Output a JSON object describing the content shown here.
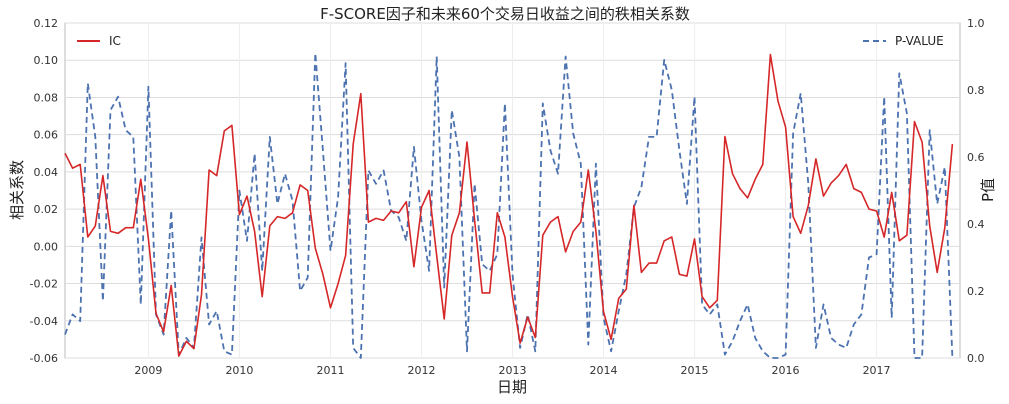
{
  "chart_data": {
    "type": "line",
    "title": "F-SCORE因子和未来60个交易日收益之间的秩相关系数",
    "xlabel": "日期",
    "ylabel": "相关系数",
    "y2label": "P值",
    "x_tick_labels": [
      "2009",
      "2010",
      "2011",
      "2012",
      "2013",
      "2014",
      "2015",
      "2016",
      "2017"
    ],
    "x_range": [
      "2008-02",
      "2017-12"
    ],
    "ylim": [
      -0.06,
      0.12
    ],
    "y_ticks": [
      -0.06,
      -0.04,
      -0.02,
      0.0,
      0.02,
      0.04,
      0.06,
      0.08,
      0.1,
      0.12
    ],
    "y2lim": [
      0.0,
      1.0
    ],
    "y2_ticks": [
      0.0,
      0.2,
      0.4,
      0.6,
      0.8,
      1.0
    ],
    "grid": true,
    "legend": [
      {
        "name": "IC",
        "placement": "top-left"
      },
      {
        "name": "P-VALUE",
        "placement": "top-right"
      }
    ],
    "series": [
      {
        "name": "IC",
        "axis": "left",
        "style": "solid",
        "color": "#d62728",
        "points": [
          [
            "2008-02",
            0.05
          ],
          [
            "2008-03",
            0.042
          ],
          [
            "2008-04",
            0.044
          ],
          [
            "2008-05",
            0.005
          ],
          [
            "2008-06",
            0.011
          ],
          [
            "2008-07",
            0.038
          ],
          [
            "2008-08",
            0.008
          ],
          [
            "2008-09",
            0.007
          ],
          [
            "2008-10",
            0.01
          ],
          [
            "2008-11",
            0.01
          ],
          [
            "2008-12",
            0.036
          ],
          [
            "2009-01",
            0.004
          ],
          [
            "2009-02",
            -0.036
          ],
          [
            "2009-03",
            -0.046
          ],
          [
            "2009-04",
            -0.021
          ],
          [
            "2009-05",
            -0.059
          ],
          [
            "2009-06",
            -0.051
          ],
          [
            "2009-07",
            -0.055
          ],
          [
            "2009-08",
            -0.026
          ],
          [
            "2009-09",
            0.041
          ],
          [
            "2009-10",
            0.038
          ],
          [
            "2009-11",
            0.062
          ],
          [
            "2009-12",
            0.065
          ],
          [
            "2010-01",
            0.017
          ],
          [
            "2010-02",
            0.027
          ],
          [
            "2010-03",
            0.008
          ],
          [
            "2010-04",
            -0.027
          ],
          [
            "2010-05",
            0.011
          ],
          [
            "2010-06",
            0.016
          ],
          [
            "2010-07",
            0.015
          ],
          [
            "2010-08",
            0.018
          ],
          [
            "2010-09",
            0.033
          ],
          [
            "2010-10",
            0.03
          ],
          [
            "2010-11",
            -0.001
          ],
          [
            "2010-12",
            -0.015
          ],
          [
            "2011-01",
            -0.033
          ],
          [
            "2011-02",
            -0.02
          ],
          [
            "2011-03",
            -0.005
          ],
          [
            "2011-04",
            0.055
          ],
          [
            "2011-05",
            0.082
          ],
          [
            "2011-06",
            0.013
          ],
          [
            "2011-07",
            0.015
          ],
          [
            "2011-08",
            0.014
          ],
          [
            "2011-09",
            0.019
          ],
          [
            "2011-10",
            0.018
          ],
          [
            "2011-11",
            0.024
          ],
          [
            "2011-12",
            -0.011
          ],
          [
            "2012-01",
            0.021
          ],
          [
            "2012-02",
            0.03
          ],
          [
            "2012-03",
            -0.005
          ],
          [
            "2012-04",
            -0.039
          ],
          [
            "2012-05",
            0.006
          ],
          [
            "2012-06",
            0.018
          ],
          [
            "2012-07",
            0.056
          ],
          [
            "2012-08",
            0.014
          ],
          [
            "2012-09",
            -0.025
          ],
          [
            "2012-10",
            -0.025
          ],
          [
            "2012-11",
            0.018
          ],
          [
            "2012-12",
            0.005
          ],
          [
            "2013-01",
            -0.027
          ],
          [
            "2013-02",
            -0.052
          ],
          [
            "2013-03",
            -0.038
          ],
          [
            "2013-04",
            -0.049
          ],
          [
            "2013-05",
            0.006
          ],
          [
            "2013-06",
            0.013
          ],
          [
            "2013-07",
            0.016
          ],
          [
            "2013-08",
            -0.003
          ],
          [
            "2013-09",
            0.008
          ],
          [
            "2013-10",
            0.013
          ],
          [
            "2013-11",
            0.041
          ],
          [
            "2013-12",
            0.008
          ],
          [
            "2014-01",
            -0.035
          ],
          [
            "2014-02",
            -0.05
          ],
          [
            "2014-03",
            -0.028
          ],
          [
            "2014-04",
            -0.023
          ],
          [
            "2014-05",
            0.022
          ],
          [
            "2014-06",
            -0.014
          ],
          [
            "2014-07",
            -0.009
          ],
          [
            "2014-08",
            -0.009
          ],
          [
            "2014-09",
            0.003
          ],
          [
            "2014-10",
            0.005
          ],
          [
            "2014-11",
            -0.015
          ],
          [
            "2014-12",
            -0.016
          ],
          [
            "2015-01",
            0.004
          ],
          [
            "2015-02",
            -0.027
          ],
          [
            "2015-03",
            -0.033
          ],
          [
            "2015-04",
            -0.029
          ],
          [
            "2015-05",
            0.059
          ],
          [
            "2015-06",
            0.039
          ],
          [
            "2015-07",
            0.031
          ],
          [
            "2015-08",
            0.026
          ],
          [
            "2015-09",
            0.036
          ],
          [
            "2015-10",
            0.044
          ],
          [
            "2015-11",
            0.103
          ],
          [
            "2015-12",
            0.078
          ],
          [
            "2016-01",
            0.064
          ],
          [
            "2016-02",
            0.016
          ],
          [
            "2016-03",
            0.007
          ],
          [
            "2016-04",
            0.022
          ],
          [
            "2016-05",
            0.047
          ],
          [
            "2016-06",
            0.027
          ],
          [
            "2016-07",
            0.034
          ],
          [
            "2016-08",
            0.038
          ],
          [
            "2016-09",
            0.044
          ],
          [
            "2016-10",
            0.031
          ],
          [
            "2016-11",
            0.029
          ],
          [
            "2016-12",
            0.02
          ],
          [
            "2017-01",
            0.019
          ],
          [
            "2017-02",
            0.005
          ],
          [
            "2017-03",
            0.029
          ],
          [
            "2017-04",
            0.003
          ],
          [
            "2017-05",
            0.006
          ],
          [
            "2017-06",
            0.067
          ],
          [
            "2017-07",
            0.056
          ],
          [
            "2017-08",
            0.011
          ],
          [
            "2017-09",
            -0.014
          ],
          [
            "2017-10",
            0.01
          ],
          [
            "2017-11",
            0.055
          ]
        ]
      },
      {
        "name": "P-VALUE",
        "axis": "right",
        "style": "dashed",
        "color": "#4c72b0",
        "points": [
          [
            "2008-02",
            0.07
          ],
          [
            "2008-03",
            0.13
          ],
          [
            "2008-04",
            0.11
          ],
          [
            "2008-05",
            0.82
          ],
          [
            "2008-06",
            0.66
          ],
          [
            "2008-07",
            0.17
          ],
          [
            "2008-08",
            0.74
          ],
          [
            "2008-09",
            0.78
          ],
          [
            "2008-10",
            0.68
          ],
          [
            "2008-11",
            0.66
          ],
          [
            "2008-12",
            0.16
          ],
          [
            "2009-01",
            0.81
          ],
          [
            "2009-02",
            0.13
          ],
          [
            "2009-03",
            0.07
          ],
          [
            "2009-04",
            0.44
          ],
          [
            "2009-05",
            0.01
          ],
          [
            "2009-06",
            0.06
          ],
          [
            "2009-07",
            0.03
          ],
          [
            "2009-08",
            0.36
          ],
          [
            "2009-09",
            0.1
          ],
          [
            "2009-10",
            0.14
          ],
          [
            "2009-11",
            0.02
          ],
          [
            "2009-12",
            0.01
          ],
          [
            "2010-01",
            0.5
          ],
          [
            "2010-02",
            0.35
          ],
          [
            "2010-03",
            0.61
          ],
          [
            "2010-04",
            0.26
          ],
          [
            "2010-05",
            0.66
          ],
          [
            "2010-06",
            0.46
          ],
          [
            "2010-07",
            0.55
          ],
          [
            "2010-08",
            0.47
          ],
          [
            "2010-09",
            0.2
          ],
          [
            "2010-10",
            0.24
          ],
          [
            "2010-11",
            0.91
          ],
          [
            "2010-12",
            0.62
          ],
          [
            "2011-01",
            0.32
          ],
          [
            "2011-02",
            0.48
          ],
          [
            "2011-03",
            0.88
          ],
          [
            "2011-04",
            0.03
          ],
          [
            "2011-05",
            0.0
          ],
          [
            "2011-06",
            0.56
          ],
          [
            "2011-07",
            0.52
          ],
          [
            "2011-08",
            0.56
          ],
          [
            "2011-09",
            0.44
          ],
          [
            "2011-10",
            0.42
          ],
          [
            "2011-11",
            0.35
          ],
          [
            "2011-12",
            0.63
          ],
          [
            "2012-01",
            0.41
          ],
          [
            "2012-02",
            0.26
          ],
          [
            "2012-03",
            0.9
          ],
          [
            "2012-04",
            0.21
          ],
          [
            "2012-05",
            0.74
          ],
          [
            "2012-06",
            0.6
          ],
          [
            "2012-07",
            0.02
          ],
          [
            "2012-08",
            0.52
          ],
          [
            "2012-09",
            0.28
          ],
          [
            "2012-10",
            0.26
          ],
          [
            "2012-11",
            0.31
          ],
          [
            "2012-12",
            0.76
          ],
          [
            "2013-01",
            0.25
          ],
          [
            "2013-02",
            0.03
          ],
          [
            "2013-03",
            0.13
          ],
          [
            "2013-04",
            0.02
          ],
          [
            "2013-05",
            0.76
          ],
          [
            "2013-06",
            0.62
          ],
          [
            "2013-07",
            0.55
          ],
          [
            "2013-08",
            0.9
          ],
          [
            "2013-09",
            0.67
          ],
          [
            "2013-10",
            0.58
          ],
          [
            "2013-11",
            0.04
          ],
          [
            "2013-12",
            0.58
          ],
          [
            "2014-01",
            0.12
          ],
          [
            "2014-02",
            0.02
          ],
          [
            "2014-03",
            0.14
          ],
          [
            "2014-04",
            0.25
          ],
          [
            "2014-05",
            0.45
          ],
          [
            "2014-06",
            0.51
          ],
          [
            "2014-07",
            0.66
          ],
          [
            "2014-08",
            0.66
          ],
          [
            "2014-09",
            0.89
          ],
          [
            "2014-10",
            0.8
          ],
          [
            "2014-11",
            0.62
          ],
          [
            "2014-12",
            0.46
          ],
          [
            "2015-01",
            0.78
          ],
          [
            "2015-02",
            0.16
          ],
          [
            "2015-03",
            0.13
          ],
          [
            "2015-04",
            0.16
          ],
          [
            "2015-05",
            0.01
          ],
          [
            "2015-06",
            0.05
          ],
          [
            "2015-07",
            0.11
          ],
          [
            "2015-08",
            0.16
          ],
          [
            "2015-09",
            0.06
          ],
          [
            "2015-10",
            0.02
          ],
          [
            "2015-11",
            0.0
          ],
          [
            "2015-12",
            0.0
          ],
          [
            "2016-01",
            0.01
          ],
          [
            "2016-02",
            0.67
          ],
          [
            "2016-03",
            0.79
          ],
          [
            "2016-04",
            0.52
          ],
          [
            "2016-05",
            0.03
          ],
          [
            "2016-06",
            0.16
          ],
          [
            "2016-07",
            0.06
          ],
          [
            "2016-08",
            0.04
          ],
          [
            "2016-09",
            0.03
          ],
          [
            "2016-10",
            0.1
          ],
          [
            "2016-11",
            0.13
          ],
          [
            "2016-12",
            0.3
          ],
          [
            "2017-01",
            0.31
          ],
          [
            "2017-02",
            0.78
          ],
          [
            "2017-03",
            0.12
          ],
          [
            "2017-04",
            0.85
          ],
          [
            "2017-05",
            0.73
          ],
          [
            "2017-06",
            0.0
          ],
          [
            "2017-07",
            0.0
          ],
          [
            "2017-08",
            0.68
          ],
          [
            "2017-09",
            0.46
          ],
          [
            "2017-10",
            0.57
          ],
          [
            "2017-11",
            0.0
          ]
        ]
      }
    ]
  }
}
